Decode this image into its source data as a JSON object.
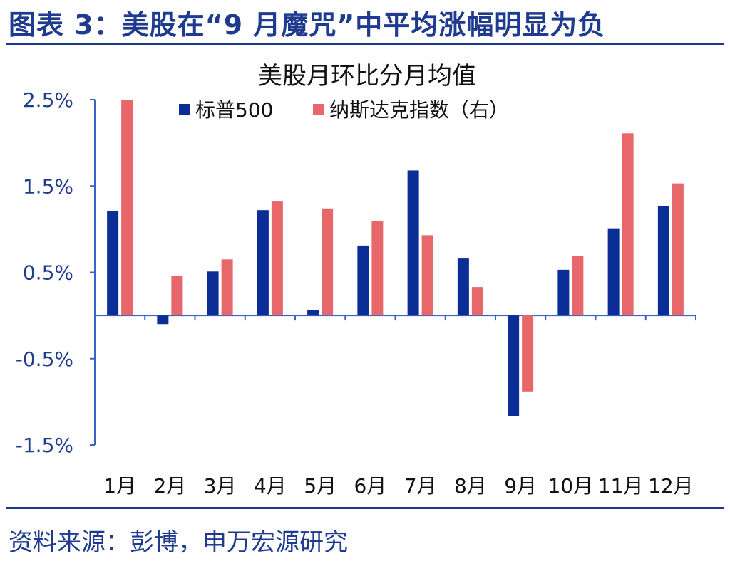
{
  "figure_title": "图表 3：美股在“9 月魔咒”中平均涨幅明显为负",
  "source_note": "资料来源：彭博，申万宏源研究",
  "colors": {
    "brand": "#1f3b8f",
    "series_sp500": "#0b2d96",
    "series_nasdaq": "#e8676a",
    "axis": "#3b63c5"
  },
  "chart_data": {
    "type": "bar",
    "title": "美股月环比分月均值",
    "categories": [
      "1月",
      "2月",
      "3月",
      "4月",
      "5月",
      "6月",
      "7月",
      "8月",
      "9月",
      "10月",
      "11月",
      "12月"
    ],
    "y_tick_labels": [
      "2.5%",
      "1.5%",
      "0.5%",
      "-0.5%",
      "-1.5%"
    ],
    "ylim": [
      -1.5,
      2.5
    ],
    "xlabel": "",
    "ylabel": "",
    "legend_position": "top-center",
    "grid": false,
    "series": [
      {
        "name": "标普500",
        "values": [
          1.21,
          -0.1,
          0.51,
          1.22,
          0.06,
          0.81,
          1.68,
          0.66,
          -1.17,
          0.53,
          1.01,
          1.27
        ]
      },
      {
        "name": "纳斯达克指数（右）",
        "values": [
          2.5,
          0.46,
          0.65,
          1.32,
          1.24,
          1.09,
          0.93,
          0.33,
          -0.88,
          0.69,
          2.11,
          1.53
        ]
      }
    ]
  }
}
